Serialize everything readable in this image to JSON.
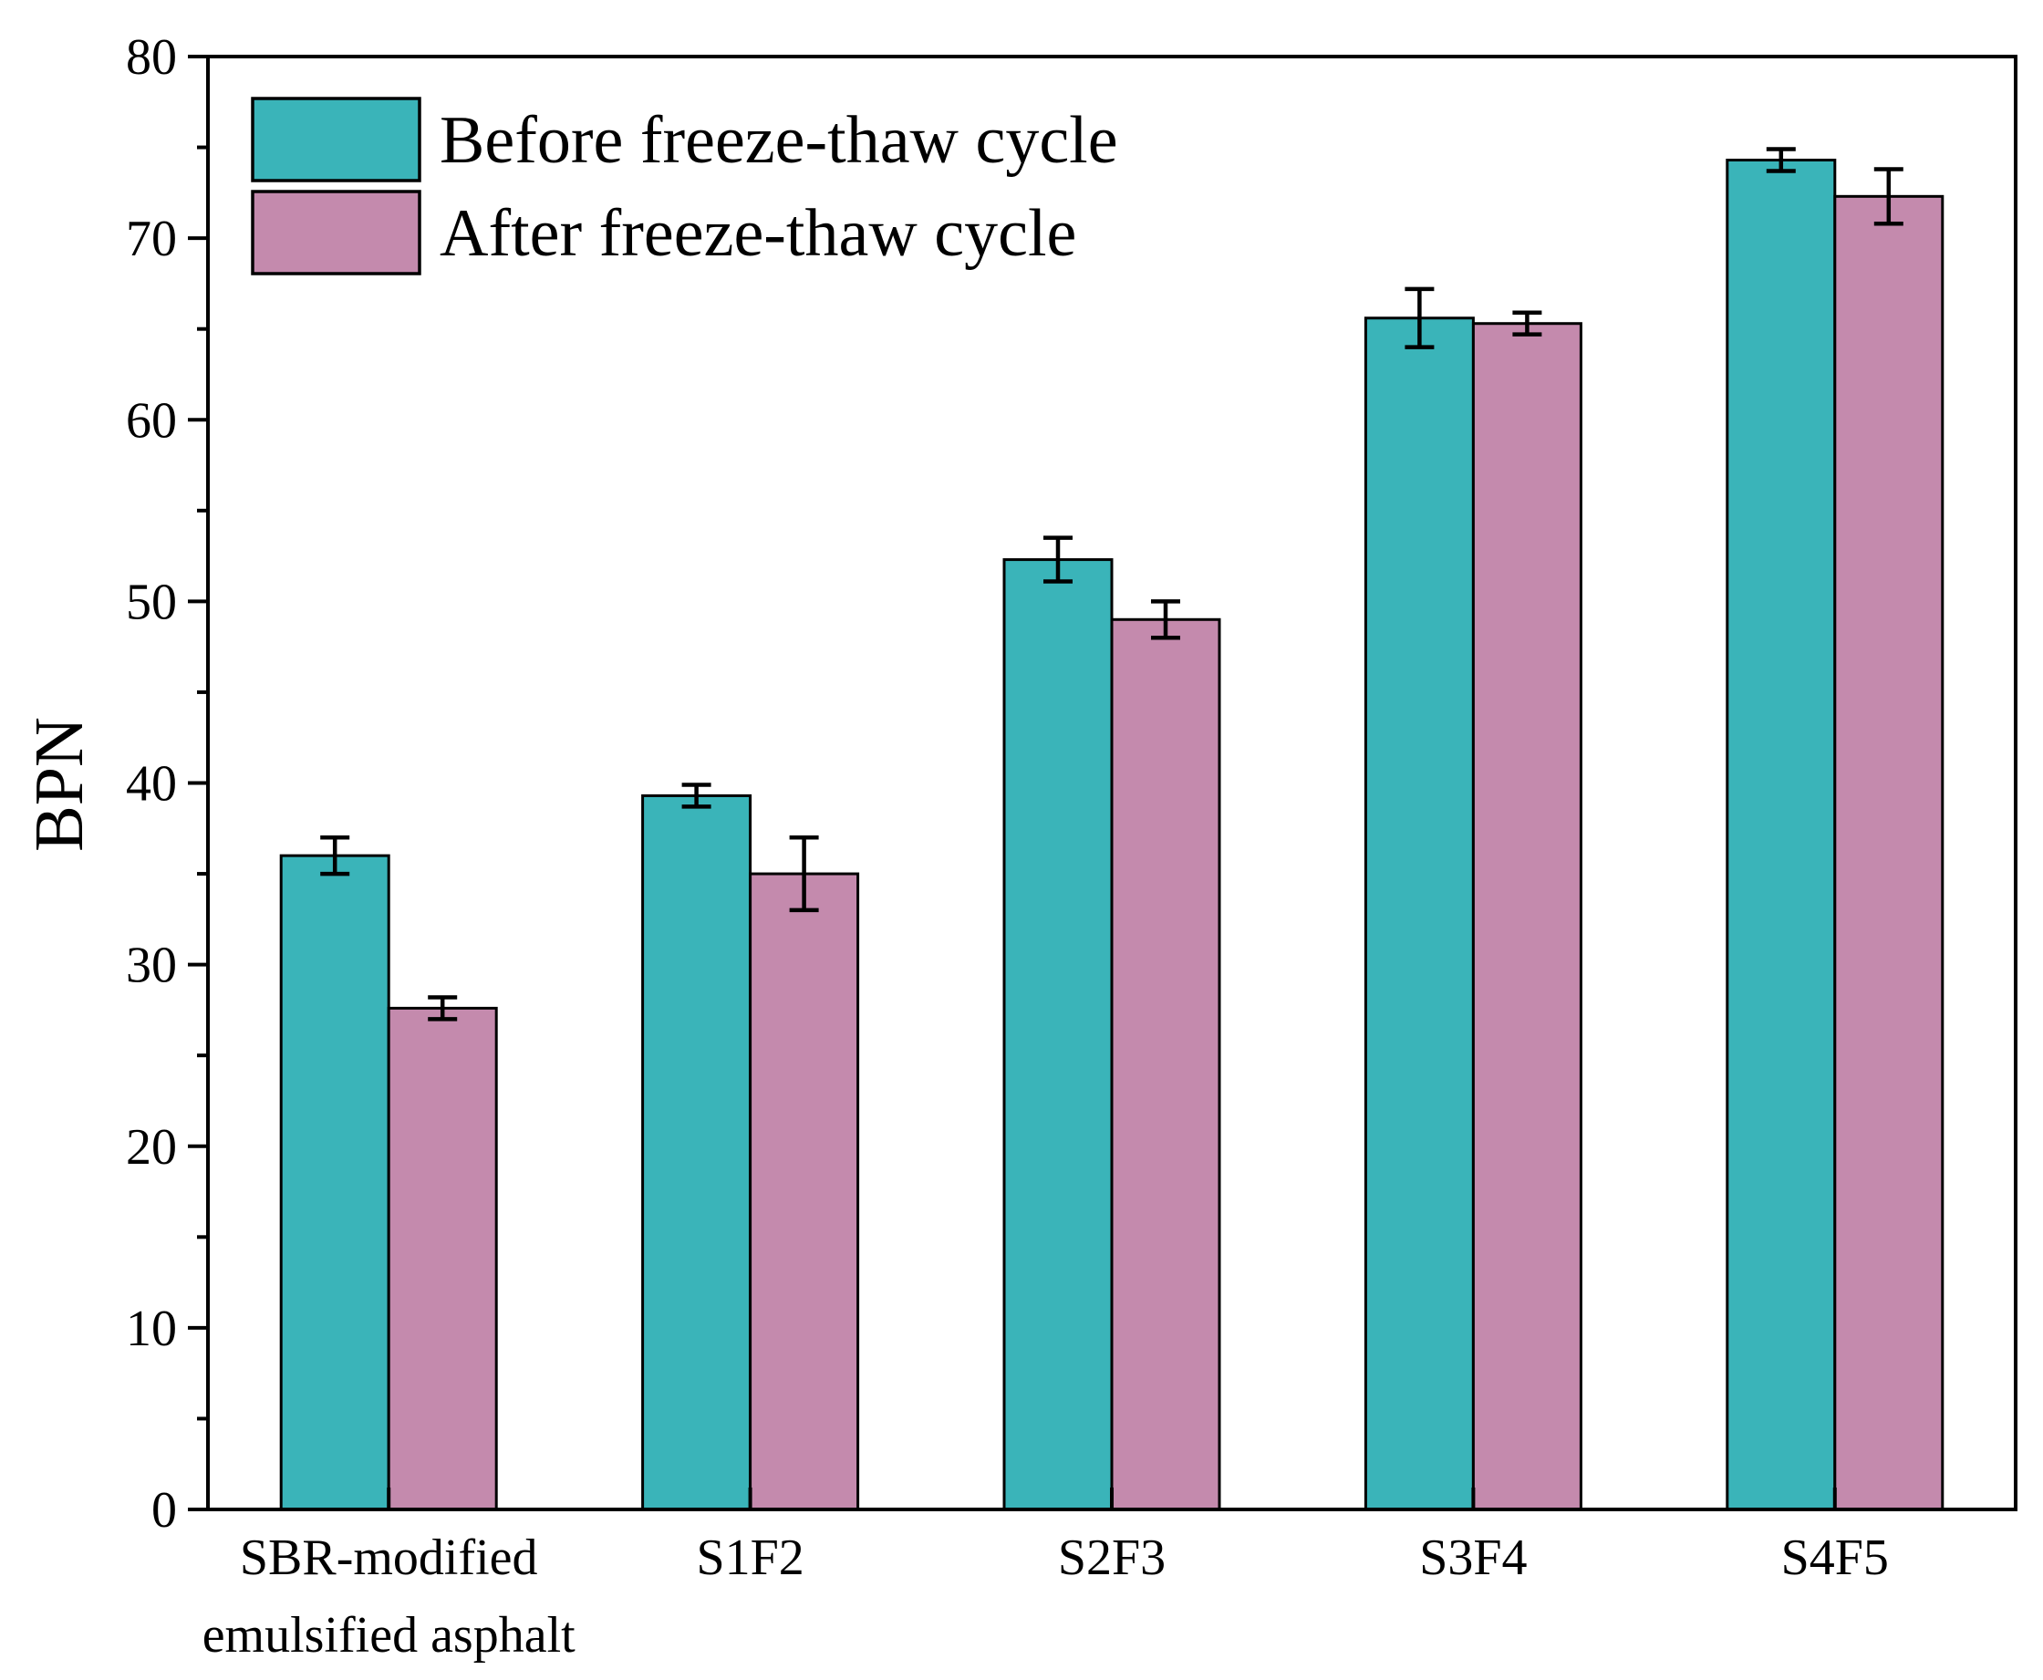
{
  "chart_data": {
    "type": "bar",
    "title": "",
    "xlabel": "",
    "ylabel": "BPN",
    "ylim": [
      0,
      80
    ],
    "yticks": [
      0,
      10,
      20,
      30,
      40,
      50,
      60,
      70,
      80
    ],
    "categories": [
      [
        "SBR-modified",
        "emulsified asphalt"
      ],
      [
        "S1F2"
      ],
      [
        "S2F3"
      ],
      [
        "S3F4"
      ],
      [
        "S4F5"
      ]
    ],
    "series": [
      {
        "name": "Before freeze-thaw cycle",
        "color": "#3ab4b9",
        "values": [
          36.0,
          39.3,
          52.3,
          65.6,
          74.3
        ],
        "errors": [
          1.0,
          0.6,
          1.2,
          1.6,
          0.6
        ]
      },
      {
        "name": "After freeze-thaw cycle",
        "color": "#c48aad",
        "values": [
          27.6,
          35.0,
          49.0,
          65.3,
          72.3
        ],
        "errors": [
          0.6,
          2.0,
          1.0,
          0.6,
          1.5
        ]
      }
    ],
    "legend_position": "top-left",
    "grid": false
  }
}
